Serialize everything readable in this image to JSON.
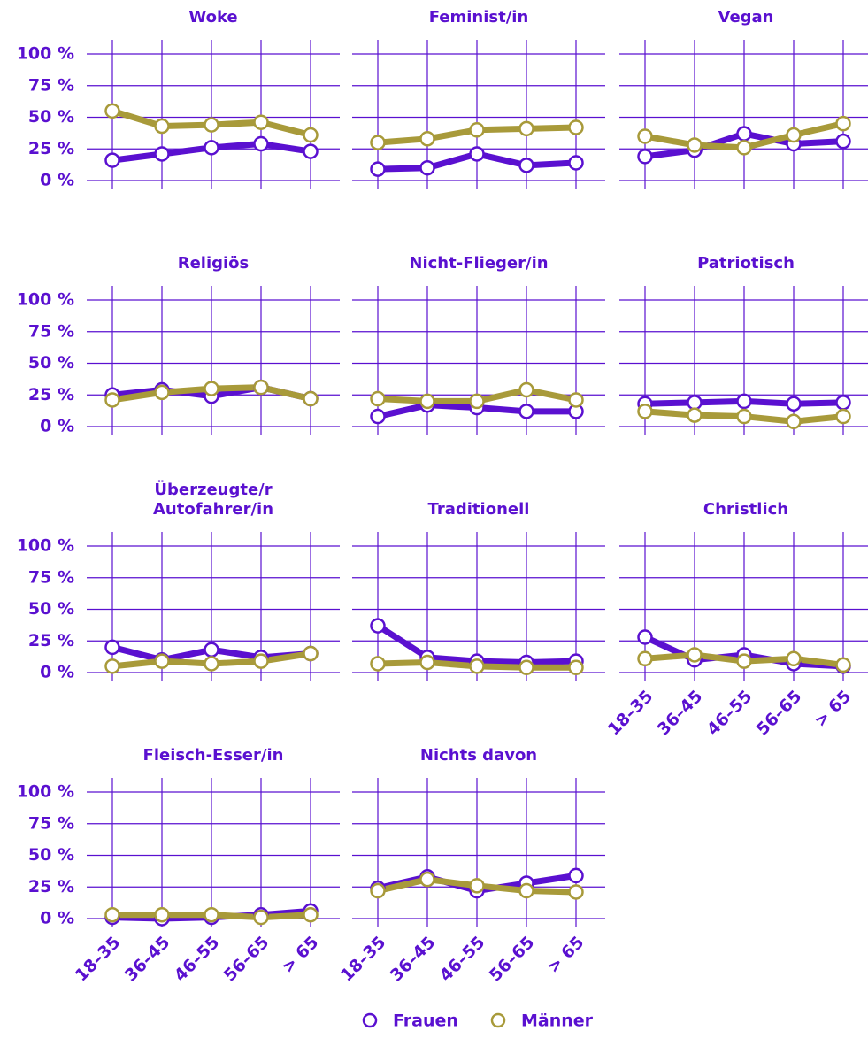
{
  "chart_data": [
    {
      "type": "line",
      "title": "Woke",
      "categories": [
        "18–35",
        "36–45",
        "46–55",
        "56–65",
        "> 65"
      ],
      "ylim": [
        0,
        100
      ],
      "yticks": [
        {
          "value": 0,
          "label": "0 %"
        },
        {
          "value": 25,
          "label": "25 %"
        },
        {
          "value": 50,
          "label": "50 %"
        },
        {
          "value": 75,
          "label": "75 %"
        },
        {
          "value": 100,
          "label": "100 %"
        }
      ],
      "grid": true,
      "series": [
        {
          "name": "Frauen",
          "color": "#5a10d0",
          "values": [
            16,
            21,
            26,
            29,
            23
          ]
        },
        {
          "name": "Männer",
          "color": "#a89a3a",
          "values": [
            55,
            43,
            44,
            46,
            36
          ]
        }
      ]
    },
    {
      "type": "line",
      "title": "Feminist/in",
      "categories": [
        "18–35",
        "36–45",
        "46–55",
        "56–65",
        "> 65"
      ],
      "ylim": [
        0,
        100
      ],
      "yticks": [
        {
          "value": 0,
          "label": "0 %"
        },
        {
          "value": 25,
          "label": "25 %"
        },
        {
          "value": 50,
          "label": "50 %"
        },
        {
          "value": 75,
          "label": "75 %"
        },
        {
          "value": 100,
          "label": "100 %"
        }
      ],
      "grid": true,
      "series": [
        {
          "name": "Frauen",
          "color": "#5a10d0",
          "values": [
            9,
            10,
            21,
            12,
            14
          ]
        },
        {
          "name": "Männer",
          "color": "#a89a3a",
          "values": [
            30,
            33,
            40,
            41,
            42
          ]
        }
      ]
    },
    {
      "type": "line",
      "title": "Vegan",
      "categories": [
        "18–35",
        "36–45",
        "46–55",
        "56–65",
        "> 65"
      ],
      "ylim": [
        0,
        100
      ],
      "yticks": [
        {
          "value": 0,
          "label": "0 %"
        },
        {
          "value": 25,
          "label": "25 %"
        },
        {
          "value": 50,
          "label": "50 %"
        },
        {
          "value": 75,
          "label": "75 %"
        },
        {
          "value": 100,
          "label": "100 %"
        }
      ],
      "grid": true,
      "series": [
        {
          "name": "Frauen",
          "color": "#5a10d0",
          "values": [
            19,
            24,
            37,
            29,
            31
          ]
        },
        {
          "name": "Männer",
          "color": "#a89a3a",
          "values": [
            35,
            28,
            26,
            36,
            45
          ]
        }
      ]
    },
    {
      "type": "line",
      "title": "Religiös",
      "categories": [
        "18–35",
        "36–45",
        "46–55",
        "56–65",
        "> 65"
      ],
      "ylim": [
        0,
        100
      ],
      "yticks": [
        {
          "value": 0,
          "label": "0 %"
        },
        {
          "value": 25,
          "label": "25 %"
        },
        {
          "value": 50,
          "label": "50 %"
        },
        {
          "value": 75,
          "label": "75 %"
        },
        {
          "value": 100,
          "label": "100 %"
        }
      ],
      "grid": true,
      "series": [
        {
          "name": "Frauen",
          "color": "#5a10d0",
          "values": [
            25,
            29,
            24,
            31,
            22
          ]
        },
        {
          "name": "Männer",
          "color": "#a89a3a",
          "values": [
            21,
            27,
            30,
            31,
            22
          ]
        }
      ]
    },
    {
      "type": "line",
      "title": "Nicht-Flieger/in",
      "categories": [
        "18–35",
        "36–45",
        "46–55",
        "56–65",
        "> 65"
      ],
      "ylim": [
        0,
        100
      ],
      "yticks": [
        {
          "value": 0,
          "label": "0 %"
        },
        {
          "value": 25,
          "label": "25 %"
        },
        {
          "value": 50,
          "label": "50 %"
        },
        {
          "value": 75,
          "label": "75 %"
        },
        {
          "value": 100,
          "label": "100 %"
        }
      ],
      "grid": true,
      "series": [
        {
          "name": "Frauen",
          "color": "#5a10d0",
          "values": [
            8,
            17,
            15,
            12,
            12
          ]
        },
        {
          "name": "Männer",
          "color": "#a89a3a",
          "values": [
            22,
            20,
            20,
            29,
            21
          ]
        }
      ]
    },
    {
      "type": "line",
      "title": "Patriotisch",
      "categories": [
        "18–35",
        "36–45",
        "46–55",
        "56–65",
        "> 65"
      ],
      "ylim": [
        0,
        100
      ],
      "yticks": [
        {
          "value": 0,
          "label": "0 %"
        },
        {
          "value": 25,
          "label": "25 %"
        },
        {
          "value": 50,
          "label": "50 %"
        },
        {
          "value": 75,
          "label": "75 %"
        },
        {
          "value": 100,
          "label": "100 %"
        }
      ],
      "grid": true,
      "series": [
        {
          "name": "Frauen",
          "color": "#5a10d0",
          "values": [
            18,
            19,
            20,
            18,
            19
          ]
        },
        {
          "name": "Männer",
          "color": "#a89a3a",
          "values": [
            12,
            9,
            8,
            4,
            8
          ]
        }
      ]
    },
    {
      "type": "line",
      "title": "Überzeugte/r\nAutofahrer/in",
      "categories": [
        "18–35",
        "36–45",
        "46–55",
        "56–65",
        "> 65"
      ],
      "ylim": [
        0,
        100
      ],
      "yticks": [
        {
          "value": 0,
          "label": "0 %"
        },
        {
          "value": 25,
          "label": "25 %"
        },
        {
          "value": 50,
          "label": "50 %"
        },
        {
          "value": 75,
          "label": "75 %"
        },
        {
          "value": 100,
          "label": "100 %"
        }
      ],
      "grid": true,
      "series": [
        {
          "name": "Frauen",
          "color": "#5a10d0",
          "values": [
            20,
            10,
            18,
            12,
            15
          ]
        },
        {
          "name": "Männer",
          "color": "#a89a3a",
          "values": [
            5,
            9,
            7,
            9,
            15
          ]
        }
      ]
    },
    {
      "type": "line",
      "title": "Traditionell",
      "categories": [
        "18–35",
        "36–45",
        "46–55",
        "56–65",
        "> 65"
      ],
      "ylim": [
        0,
        100
      ],
      "yticks": [
        {
          "value": 0,
          "label": "0 %"
        },
        {
          "value": 25,
          "label": "25 %"
        },
        {
          "value": 50,
          "label": "50 %"
        },
        {
          "value": 75,
          "label": "75 %"
        },
        {
          "value": 100,
          "label": "100 %"
        }
      ],
      "grid": true,
      "series": [
        {
          "name": "Frauen",
          "color": "#5a10d0",
          "values": [
            37,
            12,
            9,
            8,
            9
          ]
        },
        {
          "name": "Männer",
          "color": "#a89a3a",
          "values": [
            7,
            8,
            5,
            4,
            4
          ]
        }
      ]
    },
    {
      "type": "line",
      "title": "Christlich",
      "categories": [
        "18–35",
        "36–45",
        "46–55",
        "56–65",
        "> 65"
      ],
      "ylim": [
        0,
        100
      ],
      "yticks": [
        {
          "value": 0,
          "label": "0 %"
        },
        {
          "value": 25,
          "label": "25 %"
        },
        {
          "value": 50,
          "label": "50 %"
        },
        {
          "value": 75,
          "label": "75 %"
        },
        {
          "value": 100,
          "label": "100 %"
        }
      ],
      "grid": true,
      "series": [
        {
          "name": "Frauen",
          "color": "#5a10d0",
          "values": [
            28,
            10,
            14,
            7,
            5
          ]
        },
        {
          "name": "Männer",
          "color": "#a89a3a",
          "values": [
            11,
            14,
            9,
            11,
            6
          ]
        }
      ]
    },
    {
      "type": "line",
      "title": "Fleisch-Esser/in",
      "categories": [
        "18–35",
        "36–45",
        "46–55",
        "56–65",
        "> 65"
      ],
      "ylim": [
        0,
        100
      ],
      "yticks": [
        {
          "value": 0,
          "label": "0 %"
        },
        {
          "value": 25,
          "label": "25 %"
        },
        {
          "value": 50,
          "label": "50 %"
        },
        {
          "value": 75,
          "label": "75 %"
        },
        {
          "value": 100,
          "label": "100 %"
        }
      ],
      "grid": true,
      "series": [
        {
          "name": "Frauen",
          "color": "#5a10d0",
          "values": [
            1,
            0,
            1,
            3,
            6
          ]
        },
        {
          "name": "Männer",
          "color": "#a89a3a",
          "values": [
            3,
            3,
            3,
            1,
            3
          ]
        }
      ]
    },
    {
      "type": "line",
      "title": "Nichts davon",
      "categories": [
        "18–35",
        "36–45",
        "46–55",
        "56–65",
        "> 65"
      ],
      "ylim": [
        0,
        100
      ],
      "yticks": [
        {
          "value": 0,
          "label": "0 %"
        },
        {
          "value": 25,
          "label": "25 %"
        },
        {
          "value": 50,
          "label": "50 %"
        },
        {
          "value": 75,
          "label": "75 %"
        },
        {
          "value": 100,
          "label": "100 %"
        }
      ],
      "grid": true,
      "series": [
        {
          "name": "Frauen",
          "color": "#5a10d0",
          "values": [
            24,
            33,
            22,
            28,
            34
          ]
        },
        {
          "name": "Männer",
          "color": "#a89a3a",
          "values": [
            22,
            31,
            26,
            22,
            21
          ]
        }
      ]
    }
  ]
}
